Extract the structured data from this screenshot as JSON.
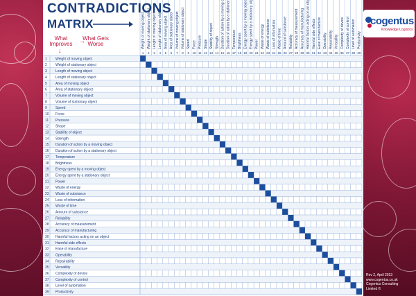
{
  "title": {
    "line1": "CONTRADICTIONS",
    "line2": "MATRIX"
  },
  "legend": {
    "improves": "What Improves",
    "worse": "What Gets Worse"
  },
  "brand": {
    "name": "cogentus",
    "tagline": "Knowledge Logistics"
  },
  "footer": {
    "line1": "Rev 2, April 2013",
    "line2": "www.cogentus.co.uk",
    "line3": "Cogentus Consulting",
    "line4": "Limited ©"
  },
  "colors": {
    "primary": "#1a3d7c",
    "accent": "#c0143c",
    "cell_fill": "#1d4e9e"
  },
  "parameters": [
    "Weight of moving object",
    "Weight of stationary object",
    "Length of moving object",
    "Length of stationary object",
    "Area of moving object",
    "Area of stationary object",
    "Volume of moving object",
    "Volume of stationary object",
    "Speed",
    "Force",
    "Pressure",
    "Shape",
    "Stability of object",
    "Strength",
    "Duration of action by a moving object",
    "Duration of action by a stationary object",
    "Temperature",
    "Brightness",
    "Energy spent by a moving object",
    "Energy spent by a stationary object",
    "Power",
    "Waste of energy",
    "Waste of substance",
    "Loss of information",
    "Waste of time",
    "Amount of substance",
    "Reliability",
    "Accuracy of measurement",
    "Accuracy of manufacturing",
    "Harmful factors acting on an object",
    "Harmful side effects",
    "Ease of manufacture",
    "Operability",
    "Repairability",
    "Versatility",
    "Complexity of device",
    "Complexity of control",
    "Level of automation",
    "Productivity"
  ]
}
